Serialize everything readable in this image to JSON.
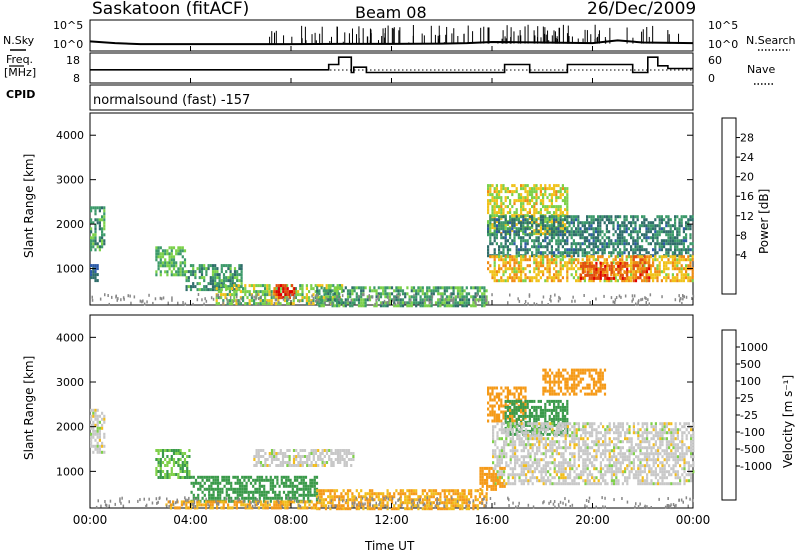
{
  "header": {
    "title": "Saskatoon (fitACF)",
    "beam": "Beam 08",
    "date": "26/Dec/2009"
  },
  "side_labels": {
    "nsky": "N.Sky",
    "freq_line1": "Freq.",
    "freq_line2": "[MHz]",
    "cpid": "CPID",
    "nsearch": "N.Search",
    "nave": "Nave",
    "mode": "normalsound (fast) -157"
  },
  "colors": {
    "power_scale": [
      "#0a1cff",
      "#2c5aa8",
      "#2f6d6a",
      "#3c9a6a",
      "#7bd149",
      "#f0c21a",
      "#f08a12",
      "#e24d10",
      "#e00000"
    ],
    "velocity_scale": [
      "#e00000",
      "#f05a14",
      "#f59a18",
      "#f2bd1c",
      "#c8c8c8",
      "#c8c8c8",
      "#7fd04a",
      "#3a9a4a",
      "#3c6aa8",
      "#1a2aff"
    ],
    "nsky_line": "#000000",
    "ground_scatter": "#888888"
  },
  "chart_data": [
    {
      "type": "line",
      "name": "noise-panel",
      "ylabel_left": "N.Sky",
      "ylabel_right": "N.Search",
      "ytick_labels": [
        "10^5",
        "10^0"
      ],
      "x_hours": [
        0,
        1,
        2,
        4,
        6,
        8,
        10,
        12,
        14,
        15,
        16,
        18,
        20,
        21,
        22,
        24
      ],
      "nsky_log10": [
        1.4,
        1.1,
        0.9,
        0.9,
        0.9,
        0.9,
        0.95,
        0.95,
        1.0,
        1.1,
        1.3,
        1.2,
        1.1,
        1.6,
        1.2,
        1.1
      ]
    },
    {
      "type": "line",
      "name": "freq-panel",
      "ylabel_left": "Freq. [MHz]",
      "ylabel_right": "Nave",
      "yticks_left": [
        "18",
        "8"
      ],
      "yticks_right": [
        "60",
        "0"
      ],
      "ylim_left": [
        8,
        18
      ],
      "ylim_right": [
        0,
        60
      ],
      "freq_steps": [
        [
          0,
          12.5
        ],
        [
          9.5,
          14.5
        ],
        [
          9.9,
          17.2
        ],
        [
          10.4,
          11.5
        ],
        [
          10.5,
          13.5
        ],
        [
          11.0,
          11.5
        ],
        [
          16.5,
          14.5
        ],
        [
          17.5,
          11.5
        ],
        [
          19.0,
          14.5
        ],
        [
          20.5,
          14.5
        ],
        [
          21.6,
          11.5
        ],
        [
          22.2,
          17.2
        ],
        [
          22.6,
          14.0
        ],
        [
          23.0,
          13.0
        ],
        [
          24,
          13.0
        ]
      ],
      "nave_level": 31
    },
    {
      "type": "heatmap",
      "name": "power",
      "ylabel": "Slant Range [km]",
      "cbar_label": "Power [dB]",
      "cbar_ticks": [
        "28",
        "24",
        "20",
        "16",
        "12",
        "8",
        "4"
      ],
      "ylim": [
        180,
        4500
      ],
      "yticks": [
        "1000",
        "2000",
        "3000",
        "4000"
      ],
      "xlim_hours": [
        0,
        24
      ],
      "blobs": [
        {
          "x0": 0.0,
          "x1": 0.6,
          "r0": 1400,
          "r1": 2400,
          "v": 12
        },
        {
          "x0": 0.0,
          "x1": 0.3,
          "r0": 700,
          "r1": 1100,
          "v": 8
        },
        {
          "x0": 2.6,
          "x1": 3.8,
          "r0": 850,
          "r1": 1500,
          "v": 14
        },
        {
          "x0": 3.8,
          "x1": 6.0,
          "r0": 500,
          "r1": 1100,
          "v": 12
        },
        {
          "x0": 5.0,
          "x1": 10.0,
          "r0": 180,
          "r1": 650,
          "v": 16
        },
        {
          "x0": 7.3,
          "x1": 8.1,
          "r0": 350,
          "r1": 650,
          "v": 27
        },
        {
          "x0": 9.0,
          "x1": 15.8,
          "r0": 180,
          "r1": 600,
          "v": 13
        },
        {
          "x0": 15.8,
          "x1": 19.0,
          "r0": 1800,
          "r1": 2900,
          "v": 18
        },
        {
          "x0": 15.8,
          "x1": 24.0,
          "r0": 1300,
          "r1": 2200,
          "v": 10
        },
        {
          "x0": 15.8,
          "x1": 24.0,
          "r0": 700,
          "r1": 1300,
          "v": 20
        },
        {
          "x0": 19.5,
          "x1": 21.4,
          "r0": 750,
          "r1": 1150,
          "v": 26
        },
        {
          "x0": 21.6,
          "x1": 22.3,
          "r0": 700,
          "r1": 1300,
          "v": 25
        }
      ]
    },
    {
      "type": "heatmap",
      "name": "velocity",
      "ylabel": "Slant Range [km]",
      "cbar_label": "Velocity [m s⁻¹]",
      "cbar_ticks": [
        "1000",
        "500",
        "100",
        "25",
        "-25",
        "-100",
        "-500",
        "-1000"
      ],
      "ylim": [
        180,
        4500
      ],
      "yticks": [
        "1000",
        "2000",
        "3000",
        "4000"
      ],
      "xlim_hours": [
        0,
        24
      ],
      "blobs": [
        {
          "x0": 0.0,
          "x1": 0.6,
          "r0": 1400,
          "r1": 2400,
          "v": 0
        },
        {
          "x0": 2.6,
          "x1": 4.0,
          "r0": 850,
          "r1": 1500,
          "v": 100
        },
        {
          "x0": 4.0,
          "x1": 9.0,
          "r0": 300,
          "r1": 900,
          "v": 150
        },
        {
          "x0": 3.0,
          "x1": 9.0,
          "r0": 180,
          "r1": 350,
          "v": -100
        },
        {
          "x0": 9.0,
          "x1": 15.8,
          "r0": 180,
          "r1": 600,
          "v": -100
        },
        {
          "x0": 6.5,
          "x1": 10.5,
          "r0": 1150,
          "r1": 1500,
          "v": 0
        },
        {
          "x0": 15.8,
          "x1": 17.3,
          "r0": 2100,
          "r1": 2900,
          "v": -300
        },
        {
          "x0": 16.5,
          "x1": 19.0,
          "r0": 1800,
          "r1": 2600,
          "v": 200
        },
        {
          "x0": 16.0,
          "x1": 24.0,
          "r0": 700,
          "r1": 2100,
          "v": 0
        },
        {
          "x0": 15.5,
          "x1": 16.5,
          "r0": 600,
          "r1": 1100,
          "v": -150
        },
        {
          "x0": 18.0,
          "x1": 20.5,
          "r0": 2700,
          "r1": 3300,
          "v": -150
        }
      ]
    }
  ],
  "xaxis": {
    "ticks": [
      "00:00",
      "04:00",
      "08:00",
      "12:00",
      "16:00",
      "20:00",
      "00:00"
    ],
    "label": "Time UT"
  }
}
